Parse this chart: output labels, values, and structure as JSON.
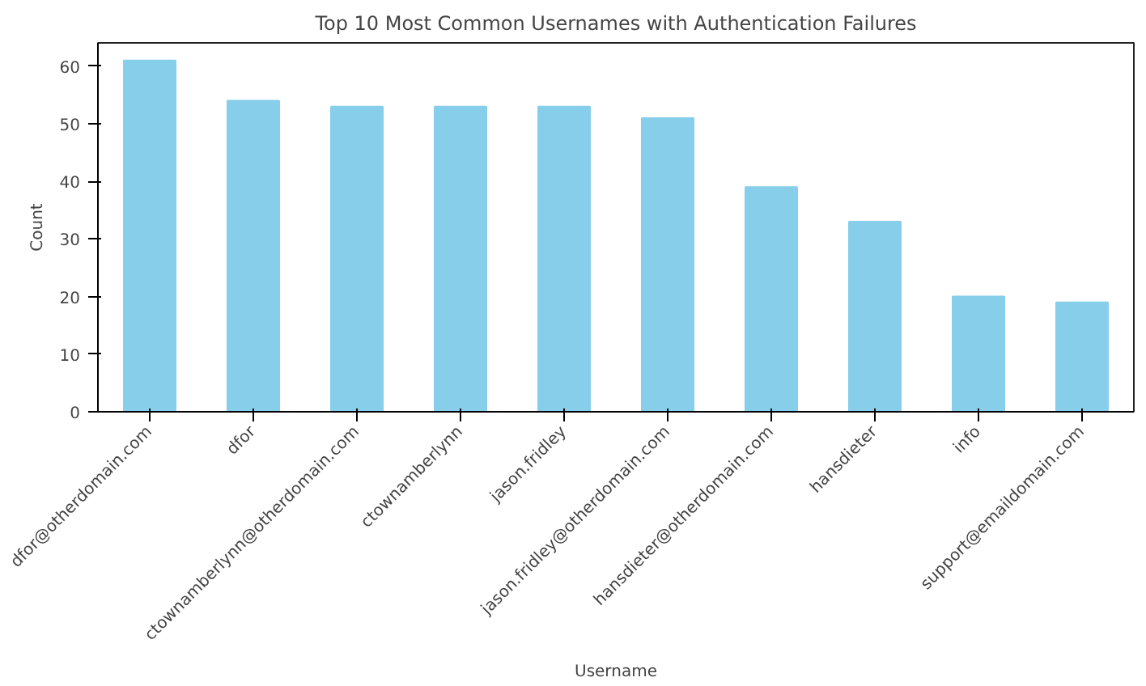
{
  "chart_data": {
    "type": "bar",
    "title": "Top 10 Most Common Usernames with Authentication Failures",
    "xlabel": "Username",
    "ylabel": "Count",
    "categories": [
      "dfor@otherdomain.com",
      "dfor",
      "ctownamberlynn@otherdomain.com",
      "ctownamberlynn",
      "jason.fridley",
      "jason.fridley@otherdomain.com",
      "hansdieter@otherdomain.com",
      "hansdieter",
      "info",
      "support@emaildomain.com"
    ],
    "values": [
      61,
      54,
      53,
      53,
      53,
      51,
      39,
      33,
      20,
      19
    ],
    "color": "#87ceeb",
    "ylim": [
      0,
      64.05
    ],
    "yticks": [
      0,
      10,
      20,
      30,
      40,
      50,
      60
    ],
    "grid": false
  }
}
